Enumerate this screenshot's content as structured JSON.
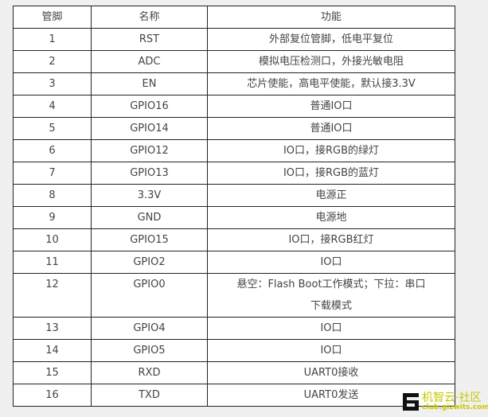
{
  "headers": [
    "管脚",
    "名称",
    "功能"
  ],
  "rows": [
    [
      "1",
      "RST",
      "外部复位管脚，低电平复位"
    ],
    [
      "2",
      "ADC",
      "模拟电压检测口，外接光敏电阻"
    ],
    [
      "3",
      "EN",
      "芯片使能，高电平使能，默认接3.3V"
    ],
    [
      "4",
      "GPIO16",
      "普通IO口"
    ],
    [
      "5",
      "GPIO14",
      "普通IO口"
    ],
    [
      "6",
      "GPIO12",
      "IO口，接RGB的绿灯"
    ],
    [
      "7",
      "GPIO13",
      "IO口，接RGB的蓝灯"
    ],
    [
      "8",
      "3.3V",
      "电源正"
    ],
    [
      "9",
      "GND",
      "电源地"
    ],
    [
      "10",
      "GPIO15",
      "IO口，接RGB红灯"
    ],
    [
      "11",
      "GPIO2",
      "IO口"
    ],
    [
      "12",
      "GPIO0",
      "悬空：Flash Boot工作模式；下拉：串口下载模式"
    ],
    [
      "13",
      "GPIO4",
      "IO口"
    ],
    [
      "14",
      "GPIO5",
      "IO口"
    ],
    [
      "15",
      "RXD",
      "UART0接收"
    ],
    [
      "16",
      "TXD",
      "UART0发送"
    ]
  ],
  "watermark": {
    "title": "机智云·社区",
    "url": "club.gizwits.com"
  }
}
